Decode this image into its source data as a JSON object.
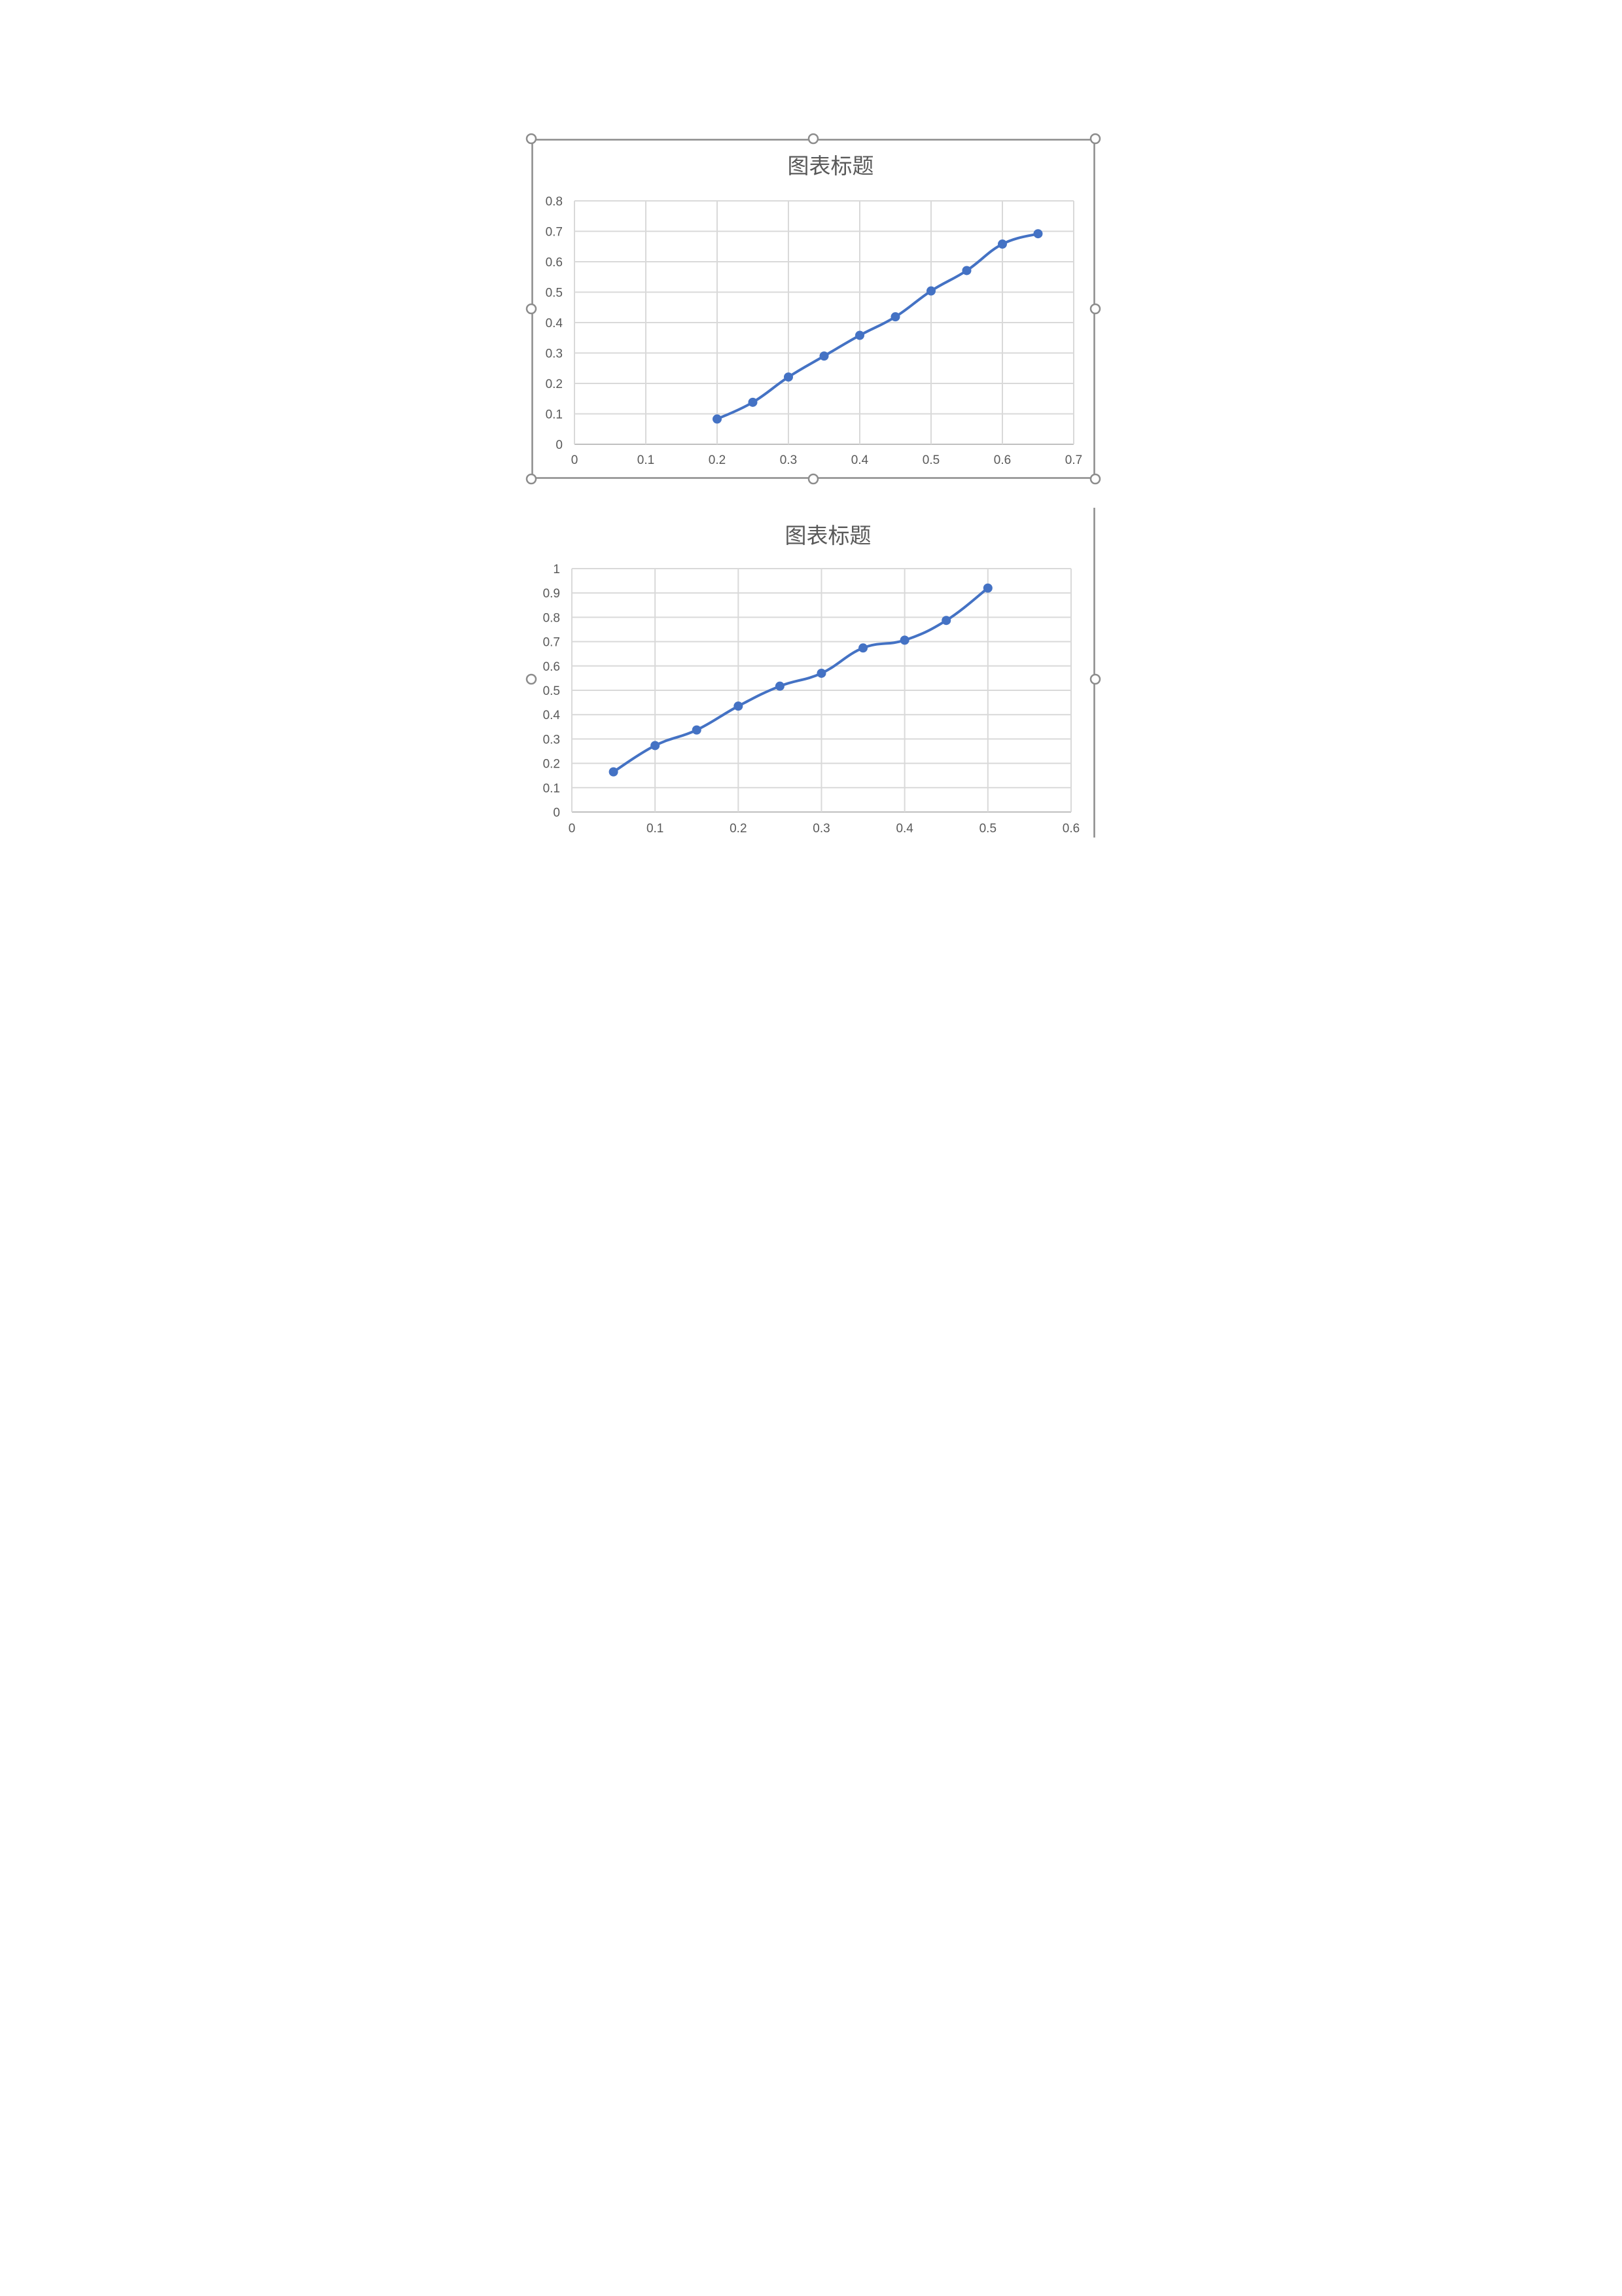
{
  "chart_data": [
    {
      "type": "line",
      "title": "图表标题",
      "xlabel": "",
      "ylabel": "",
      "xlim": [
        0,
        0.7
      ],
      "ylim": [
        0,
        0.8
      ],
      "x_ticks": [
        "0",
        "0.1",
        "0.2",
        "0.3",
        "0.4",
        "0.5",
        "0.6",
        "0.7"
      ],
      "y_ticks": [
        "0",
        "0.1",
        "0.2",
        "0.3",
        "0.4",
        "0.5",
        "0.6",
        "0.7",
        "0.8"
      ],
      "grid": true,
      "legend": "none",
      "color": "#4472c4",
      "series": [
        {
          "x": [
            0.2,
            0.25,
            0.3,
            0.35,
            0.4,
            0.45,
            0.5,
            0.55,
            0.6,
            0.65
          ],
          "y": [
            0.083,
            0.138,
            0.221,
            0.29,
            0.358,
            0.419,
            0.504,
            0.571,
            0.658,
            0.692
          ]
        }
      ]
    },
    {
      "type": "line",
      "title": "图表标题",
      "xlabel": "",
      "ylabel": "",
      "xlim": [
        0,
        0.6
      ],
      "ylim": [
        0,
        1
      ],
      "x_ticks": [
        "0",
        "0.1",
        "0.2",
        "0.3",
        "0.4",
        "0.5",
        "0.6"
      ],
      "y_ticks": [
        "0",
        "0.1",
        "0.2",
        "0.3",
        "0.4",
        "0.5",
        "0.6",
        "0.7",
        "0.8",
        "0.9",
        "1"
      ],
      "grid": true,
      "legend": "none",
      "color": "#4472c4",
      "series": [
        {
          "x": [
            0.05,
            0.1,
            0.15,
            0.2,
            0.25,
            0.3,
            0.35,
            0.4,
            0.45,
            0.5
          ],
          "y": [
            0.165,
            0.273,
            0.337,
            0.435,
            0.517,
            0.57,
            0.674,
            0.706,
            0.787,
            0.92
          ]
        }
      ]
    }
  ]
}
